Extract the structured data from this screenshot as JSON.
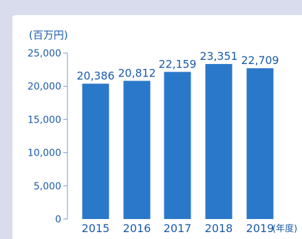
{
  "chart_data": {
    "type": "bar",
    "unit_label": "(百万円)",
    "x_unit_label": "(年度)",
    "categories": [
      "2015",
      "2016",
      "2017",
      "2018",
      "2019"
    ],
    "values": [
      20386,
      20812,
      22159,
      23351,
      22709
    ],
    "value_labels": [
      "20,386",
      "20,812",
      "22,159",
      "23,351",
      "22,709"
    ],
    "y_ticks": [
      0,
      5000,
      10000,
      15000,
      20000,
      25000
    ],
    "y_tick_labels": [
      "0",
      "5,000",
      "10,000",
      "15,000",
      "20,000",
      "25,000"
    ],
    "ylim": [
      0,
      25000
    ],
    "grid": false,
    "colors": {
      "bar": "#2a78c9",
      "text": "#1a5aaa",
      "axis": "#7a9acb"
    }
  }
}
